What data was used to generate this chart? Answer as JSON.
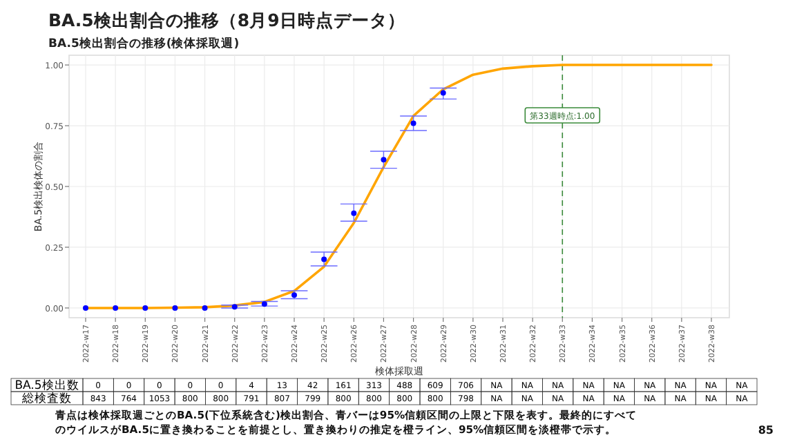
{
  "chart_data": {
    "type": "line",
    "title": "BA.5検出割合の推移（8月9日時点データ）",
    "subtitle": "BA.5検出割合の推移(検体採取週)",
    "xlabel": "検体採取週",
    "ylabel": "BA.5検出検体の割合",
    "categories": [
      "2022-w17",
      "2022-w18",
      "2022-w19",
      "2022-w20",
      "2022-w21",
      "2022-w22",
      "2022-w23",
      "2022-w24",
      "2022-w25",
      "2022-w26",
      "2022-w27",
      "2022-w28",
      "2022-w29",
      "2022-w30",
      "2022-w31",
      "2022-w32",
      "2022-w33",
      "2022-w34",
      "2022-w35",
      "2022-w36",
      "2022-w37",
      "2022-w38"
    ],
    "series": [
      {
        "color": "#ffa500",
        "values": [
          0,
          0,
          0,
          0.001,
          0.003,
          0.01,
          0.025,
          0.07,
          0.17,
          0.35,
          0.58,
          0.79,
          0.9,
          0.96,
          0.985,
          0.995,
          1.0,
          1.0,
          1.0,
          1.0,
          1.0,
          1.0
        ]
      },
      {
        "type": "scatter",
        "color": "#0000ff",
        "marker": "circle",
        "values": [
          0,
          0,
          0,
          0,
          0,
          0.005,
          0.016,
          0.053,
          0.2,
          0.39,
          0.61,
          0.76,
          0.885,
          null,
          null,
          null,
          null,
          null,
          null,
          null,
          null,
          null
        ],
        "errors": [
          null,
          null,
          null,
          null,
          null,
          [
            0.0,
            0.012
          ],
          [
            0.008,
            0.027
          ],
          [
            0.038,
            0.071
          ],
          [
            0.173,
            0.23
          ],
          [
            0.357,
            0.428
          ],
          [
            0.575,
            0.645
          ],
          [
            0.73,
            0.79
          ],
          [
            0.86,
            0.905
          ],
          null,
          null,
          null,
          null,
          null,
          null,
          null,
          null,
          null
        ]
      }
    ],
    "ylim": [
      -0.04,
      1.04
    ],
    "yticks": [
      {
        "value": 0,
        "label": "0.00"
      },
      {
        "value": 0.25,
        "label": "0.25"
      },
      {
        "value": 0.5,
        "label": "0.50"
      },
      {
        "value": 0.75,
        "label": "0.75"
      },
      {
        "value": 1,
        "label": "1.00"
      }
    ],
    "grid": true,
    "ref_lines": [
      {
        "axis": "x",
        "value": "2022-w33",
        "label": "第33週時点:1.00",
        "color": "#3a8a3a",
        "line_style": "dashed"
      }
    ],
    "annotations": [
      "BA.5検出数",
      "0",
      "0",
      "0",
      "0",
      "0",
      "4",
      "13",
      "42",
      "161",
      "313",
      "488",
      "609",
      "706",
      "NA",
      "NA",
      "NA",
      "NA",
      "NA",
      "NA",
      "NA",
      "NA",
      "NA",
      "総検査数",
      "843",
      "764",
      "1053",
      "800",
      "800",
      "791",
      "807",
      "799",
      "800",
      "800",
      "800",
      "800",
      "798",
      "NA",
      "NA",
      "NA",
      "NA",
      "NA",
      "NA",
      "NA",
      "NA",
      "NA",
      "青点は検体採取週ごとのBA.5(下位系統含む)検出割合、青バーは95%信頼区間の上限と下限を表す。最終的にすべて",
      "のウイルスがBA.5に置き換わることを前提とし、置き換わりの推定を橙ライン、95%信頼区間を淡橙帯で示す。",
      "85"
    ]
  }
}
